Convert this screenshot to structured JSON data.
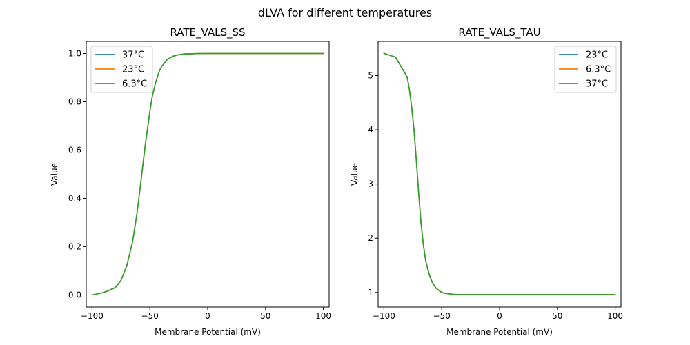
{
  "figure": {
    "suptitle": "dLVA for different temperatures"
  },
  "colors": {
    "series_1": "#1f77b4",
    "series_2": "#ff7f0e",
    "series_3": "#2ca02c",
    "axis": "#000000",
    "legend_border": "#cccccc"
  },
  "chart_data": [
    {
      "type": "line",
      "title": "RATE_VALS_SS",
      "xlabel": "Membrane Potential (mV)",
      "ylabel": "Value",
      "xlim": [
        -105,
        105
      ],
      "ylim": [
        -0.05,
        1.05
      ],
      "xticks": [
        -100,
        -50,
        0,
        50,
        100
      ],
      "yticks": [
        0.0,
        0.2,
        0.4,
        0.6,
        0.8,
        1.0
      ],
      "xtick_labels": [
        "−100",
        "−50",
        "0",
        "50",
        "100"
      ],
      "ytick_labels": [
        "0.0",
        "0.2",
        "0.4",
        "0.6",
        "0.8",
        "1.0"
      ],
      "grid": false,
      "legend_position": "upper-left",
      "x": [
        -100,
        -90,
        -80,
        -75,
        -70,
        -65,
        -62,
        -60,
        -58,
        -56,
        -54,
        -52,
        -50,
        -48,
        -45,
        -42,
        -40,
        -35,
        -30,
        -25,
        -20,
        -10,
        0,
        10,
        20,
        50,
        100
      ],
      "series": [
        {
          "name": "37°C",
          "color_key": "series_1",
          "values": [
            0.0,
            0.01,
            0.03,
            0.06,
            0.12,
            0.22,
            0.31,
            0.38,
            0.46,
            0.54,
            0.62,
            0.69,
            0.76,
            0.82,
            0.88,
            0.925,
            0.945,
            0.975,
            0.989,
            0.995,
            0.998,
            0.9995,
            1.0,
            1.0,
            1.0,
            1.0,
            1.0
          ]
        },
        {
          "name": "23°C",
          "color_key": "series_2",
          "values": [
            0.0,
            0.01,
            0.03,
            0.06,
            0.12,
            0.22,
            0.31,
            0.38,
            0.46,
            0.54,
            0.62,
            0.69,
            0.76,
            0.82,
            0.88,
            0.925,
            0.945,
            0.975,
            0.989,
            0.995,
            0.998,
            0.9995,
            1.0,
            1.0,
            1.0,
            1.0,
            1.0
          ]
        },
        {
          "name": "6.3°C",
          "color_key": "series_3",
          "values": [
            0.0,
            0.01,
            0.03,
            0.06,
            0.12,
            0.22,
            0.31,
            0.38,
            0.46,
            0.54,
            0.62,
            0.69,
            0.76,
            0.82,
            0.88,
            0.925,
            0.945,
            0.975,
            0.989,
            0.995,
            0.998,
            0.9995,
            1.0,
            1.0,
            1.0,
            1.0,
            1.0
          ]
        }
      ]
    },
    {
      "type": "line",
      "title": "RATE_VALS_TAU",
      "xlabel": "Membrane Potential (mV)",
      "ylabel": "Value",
      "xlim": [
        -105,
        105
      ],
      "ylim": [
        0.73,
        5.63
      ],
      "xticks": [
        -100,
        -50,
        0,
        50,
        100
      ],
      "yticks": [
        1,
        2,
        3,
        4,
        5
      ],
      "xtick_labels": [
        "−100",
        "−50",
        "0",
        "50",
        "100"
      ],
      "ytick_labels": [
        "1",
        "2",
        "3",
        "4",
        "5"
      ],
      "grid": false,
      "legend_position": "upper-right",
      "x": [
        -100,
        -90,
        -80,
        -78,
        -76,
        -74,
        -72,
        -70,
        -68,
        -66,
        -64,
        -62,
        -60,
        -58,
        -55,
        -52,
        -50,
        -47,
        -44,
        -40,
        -35,
        -30,
        -20,
        0,
        50,
        100
      ],
      "series": [
        {
          "name": "23°C",
          "color_key": "series_1",
          "values": [
            5.41,
            5.34,
            4.98,
            4.75,
            4.42,
            4.0,
            3.45,
            2.85,
            2.3,
            1.9,
            1.6,
            1.42,
            1.28,
            1.18,
            1.08,
            1.03,
            1.0,
            0.985,
            0.975,
            0.965,
            0.96,
            0.96,
            0.96,
            0.96,
            0.96,
            0.96
          ]
        },
        {
          "name": "6.3°C",
          "color_key": "series_2",
          "values": [
            5.41,
            5.34,
            4.98,
            4.75,
            4.42,
            4.0,
            3.45,
            2.85,
            2.3,
            1.9,
            1.6,
            1.42,
            1.28,
            1.18,
            1.08,
            1.03,
            1.0,
            0.985,
            0.975,
            0.965,
            0.96,
            0.96,
            0.96,
            0.96,
            0.96,
            0.96
          ]
        },
        {
          "name": "37°C",
          "color_key": "series_3",
          "values": [
            5.41,
            5.34,
            4.98,
            4.75,
            4.42,
            4.0,
            3.45,
            2.85,
            2.3,
            1.9,
            1.6,
            1.42,
            1.28,
            1.18,
            1.08,
            1.03,
            1.0,
            0.985,
            0.975,
            0.965,
            0.96,
            0.96,
            0.96,
            0.96,
            0.96,
            0.96
          ]
        }
      ]
    }
  ]
}
